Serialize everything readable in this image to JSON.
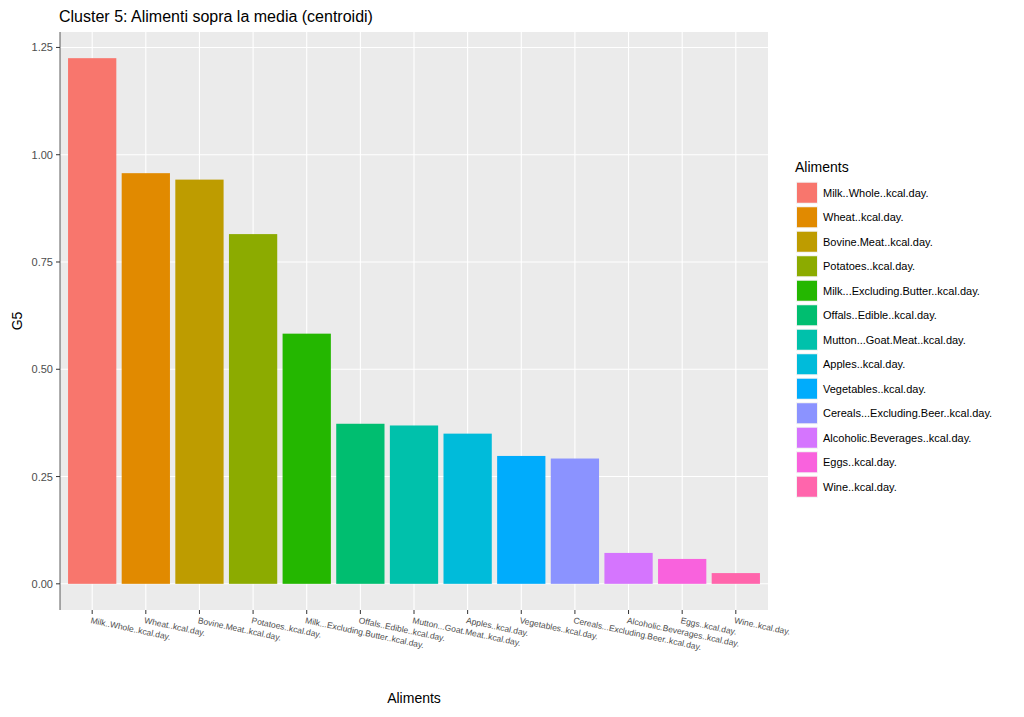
{
  "chart_data": {
    "type": "bar",
    "title": "Cluster 5: Alimenti sopra la media (centroidi)",
    "xlabel": "Aliments",
    "ylabel": "G5",
    "legend_title": "Aliments",
    "categories": [
      "Milk..Whole..kcal.day.",
      "Wheat..kcal.day.",
      "Bovine.Meat..kcal.day.",
      "Potatoes..kcal.day.",
      "Milk...Excluding.Butter..kcal.day.",
      "Offals..Edible..kcal.day.",
      "Mutton...Goat.Meat..kcal.day.",
      "Apples..kcal.day.",
      "Vegetables..kcal.day.",
      "Cereals...Excluding.Beer..kcal.day.",
      "Alcoholic.Beverages..kcal.day.",
      "Eggs..kcal.day.",
      "Wine..kcal.day."
    ],
    "values": [
      1.225,
      0.957,
      0.942,
      0.815,
      0.583,
      0.373,
      0.369,
      0.35,
      0.298,
      0.292,
      0.072,
      0.058,
      0.025
    ],
    "colors": [
      "#F8766D",
      "#E18A00",
      "#BE9C00",
      "#8CAB00",
      "#24B700",
      "#00BE70",
      "#00C1AB",
      "#00BBDA",
      "#00ACFC",
      "#8B93FF",
      "#D575FE",
      "#F962DD",
      "#FF65AC"
    ],
    "ylim": [
      -0.061,
      1.286
    ],
    "yticks": [
      {
        "value": 0,
        "label": "0.00"
      },
      {
        "value": 0.25,
        "label": "0.25"
      },
      {
        "value": 0.5,
        "label": "0.50"
      },
      {
        "value": 0.75,
        "label": "0.75"
      },
      {
        "value": 1,
        "label": "1.00"
      },
      {
        "value": 1.25,
        "label": "1.25"
      }
    ],
    "grid": true,
    "legend": "right"
  }
}
